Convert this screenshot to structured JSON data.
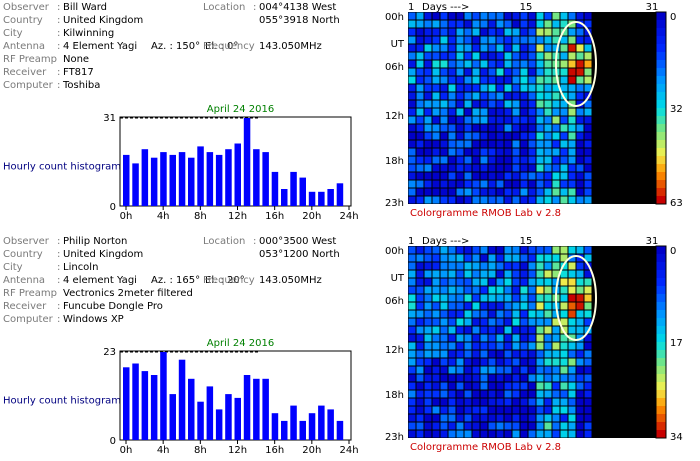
{
  "panels": [
    {
      "observer": "Bill Ward",
      "country": "United Kingdom",
      "city": "Kilwinning",
      "antenna": "4 Element Yagi",
      "az": "Az. : 150°",
      "el": "El. : 0°",
      "rf_preamp": "None",
      "receiver": "FT817",
      "computer": "Toshiba",
      "location_lon": "004°4138 West",
      "location_lat": "055°3918 North",
      "frequency": "143.050MHz"
    },
    {
      "observer": "Philip Norton",
      "country": "United Kingdom",
      "city": "Lincoln",
      "antenna": "4 element Yagi",
      "az": "Az. : 165°",
      "el": "El. : 20°",
      "rf_preamp": "Vectronics 2meter filtered",
      "receiver": "Funcube Dongle Pro",
      "computer": "Windows XP",
      "location_lon": "000°3500 West",
      "location_lat": "053°1200 North",
      "frequency": "143.050MHz"
    }
  ],
  "labels": {
    "observer": "Observer",
    "country": "Country",
    "city": "City",
    "antenna": "Antenna",
    "rf_preamp": "RF Preamp",
    "receiver": "Receiver",
    "computer": "Computer",
    "location": "Location",
    "frequency": "Frequency",
    "colon": ":"
  },
  "chart_data": [
    {
      "type": "bar",
      "title": "April 24 2016",
      "ylabel": "Hourly count histogram",
      "x": [
        0,
        1,
        2,
        3,
        4,
        5,
        6,
        7,
        8,
        9,
        10,
        11,
        12,
        13,
        14,
        15,
        16,
        17,
        18,
        19,
        20,
        21,
        22,
        23
      ],
      "values": [
        18,
        15,
        20,
        17,
        19,
        18,
        19,
        17,
        21,
        19,
        18,
        20,
        22,
        31,
        20,
        19,
        12,
        6,
        12,
        10,
        5,
        5,
        6,
        8
      ],
      "ylim": [
        0,
        31
      ],
      "xticks": [
        "0h",
        "4h",
        "8h",
        "12h",
        "16h",
        "20h",
        "24h"
      ],
      "yticks": [
        "31",
        "0"
      ]
    },
    {
      "type": "bar",
      "title": "April 24 2016",
      "ylabel": "Hourly count histogram",
      "x": [
        0,
        1,
        2,
        3,
        4,
        5,
        6,
        7,
        8,
        9,
        10,
        11,
        12,
        13,
        14,
        15,
        16,
        17,
        18,
        19,
        20,
        21,
        22,
        23
      ],
      "values": [
        19,
        20,
        18,
        17,
        23,
        12,
        21,
        16,
        10,
        14,
        8,
        12,
        11,
        17,
        16,
        16,
        7,
        5,
        9,
        5,
        7,
        9,
        8,
        5
      ],
      "ylim": [
        0,
        23
      ],
      "xticks": [
        "0h",
        "4h",
        "8h",
        "12h",
        "16h",
        "20h",
        "24h"
      ],
      "yticks": [
        "23",
        "0"
      ]
    },
    {
      "type": "heatmap",
      "title": "Colorgramme RMOB Lab v 2.8",
      "xlabel": "Days --->",
      "x_ticks": [
        "1",
        "15",
        "31"
      ],
      "y_ticks": [
        "00h",
        "UT",
        "06h",
        "12h",
        "18h",
        "23h"
      ],
      "scale_ticks": [
        "0",
        "32",
        "63"
      ],
      "days_with_data": 23,
      "hours": 24
    },
    {
      "type": "heatmap",
      "title": "Colorgramme RMOB Lab v 2.8",
      "xlabel": "Days --->",
      "x_ticks": [
        "1",
        "15",
        "31"
      ],
      "y_ticks": [
        "00h",
        "UT",
        "06h",
        "12h",
        "18h",
        "23h"
      ],
      "scale_ticks": [
        "0",
        "17",
        "34"
      ],
      "days_with_data": 23,
      "hours": 24
    }
  ]
}
